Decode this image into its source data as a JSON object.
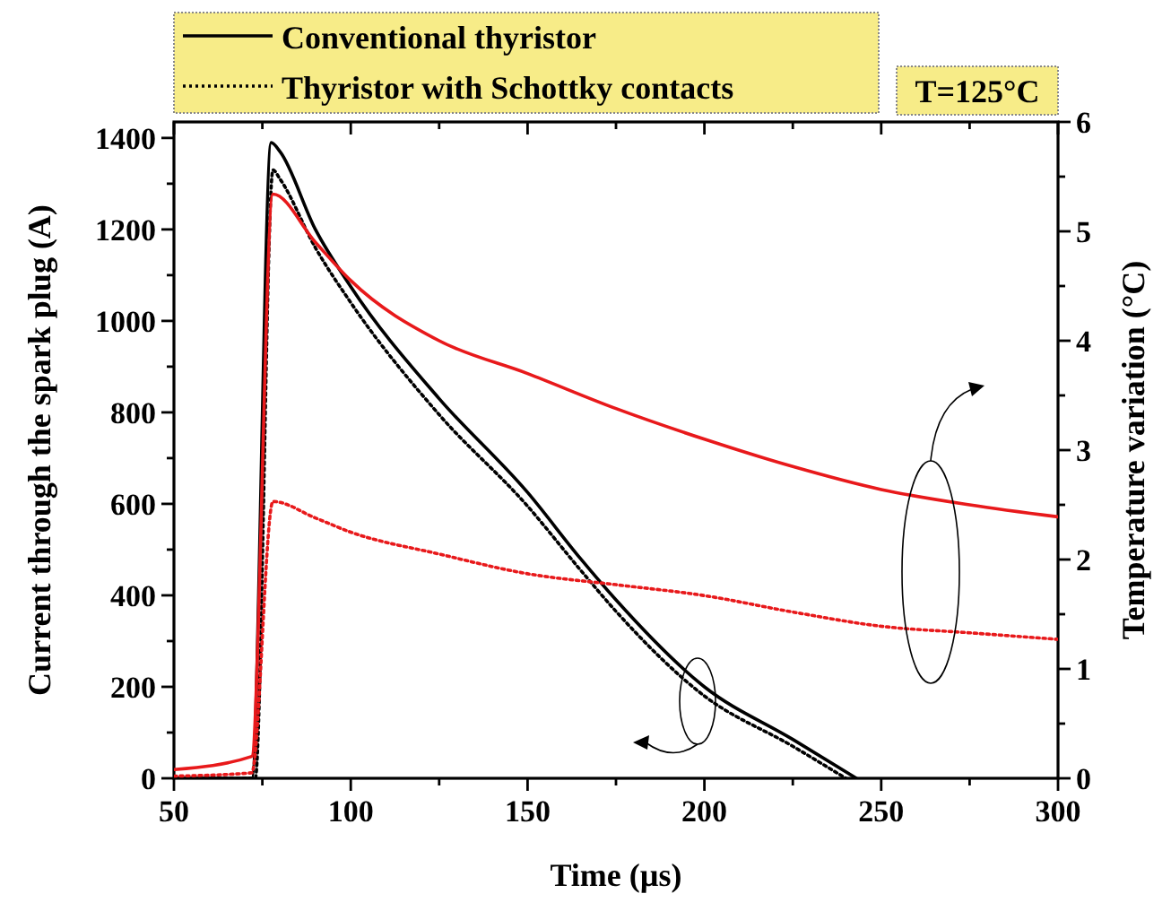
{
  "chart_data": {
    "type": "line",
    "xlabel": "Time (µs)",
    "ylabel": "Current through the spark plug (A)",
    "y2label": "Temperature variation (°C)",
    "xlim": [
      50,
      300
    ],
    "xticks": [
      50,
      {
        "value": 75,
        "label": null
      },
      100,
      {
        "value": 125,
        "label": null
      },
      150,
      {
        "value": 175,
        "label": null
      },
      200,
      {
        "value": 225,
        "label": null
      },
      250,
      {
        "value": 275,
        "label": null
      },
      300
    ],
    "ylim": [
      0,
      1435
    ],
    "yticks": [
      0,
      {
        "value": 100,
        "label": null
      },
      200,
      {
        "value": 300,
        "label": null
      },
      400,
      {
        "value": 500,
        "label": null
      },
      600,
      {
        "value": 700,
        "label": null
      },
      800,
      {
        "value": 900,
        "label": null
      },
      1000,
      {
        "value": 1100,
        "label": null
      },
      1200,
      {
        "value": 1300,
        "label": null
      },
      1400
    ],
    "y2lim": [
      0,
      6
    ],
    "y2ticks": [
      0,
      {
        "value": 0.5,
        "label": null
      },
      1,
      {
        "value": 1.5,
        "label": null
      },
      2,
      {
        "value": 2.5,
        "label": null
      },
      3,
      {
        "value": 3.5,
        "label": null
      },
      4,
      {
        "value": 4.5,
        "label": null
      },
      5,
      {
        "value": 5.5,
        "label": null
      },
      6
    ],
    "legend": "top",
    "grid": false,
    "annotations": [
      "T=125°C"
    ],
    "series": [
      {
        "name": "Conventional thyristor",
        "color": "#000000",
        "line_style": "solid",
        "x": [
          50,
          71,
          72,
          77.5,
          80,
          90,
          100,
          125,
          150,
          165,
          175,
          200,
          225,
          243
        ],
        "values": [
          0,
          0,
          0,
          1390,
          1370,
          1200,
          1075,
          830,
          625,
          480,
          390,
          200,
          85,
          0
        ]
      },
      {
        "name": "Thyristor with Schottky contacts",
        "color": "#000000",
        "line_style": "dotted",
        "x": [
          50,
          72,
          73,
          78,
          80,
          90,
          100,
          125,
          150,
          165,
          175,
          200,
          225,
          240
        ],
        "values": [
          0,
          0,
          0,
          1330,
          1310,
          1160,
          1040,
          795,
          595,
          455,
          365,
          180,
          70,
          0
        ]
      },
      {
        "color": "#e8191b",
        "line_style": "solid",
        "axis": "y2",
        "x": [
          50,
          72,
          78,
          90,
          100,
          125,
          150,
          175,
          200,
          225,
          250,
          275,
          300
        ],
        "values": [
          0.08,
          0.2,
          5.34,
          4.9,
          4.55,
          4.0,
          3.7,
          3.38,
          3.1,
          2.85,
          2.64,
          2.5,
          2.39
        ]
      },
      {
        "color": "#e8191b",
        "line_style": "dotted",
        "axis": "y2",
        "x": [
          50,
          72,
          78,
          90,
          100,
          125,
          150,
          175,
          200,
          225,
          250,
          275,
          300
        ],
        "values": [
          0.02,
          0.05,
          2.53,
          2.38,
          2.25,
          2.05,
          1.87,
          1.77,
          1.67,
          1.52,
          1.39,
          1.33,
          1.27
        ]
      }
    ]
  }
}
